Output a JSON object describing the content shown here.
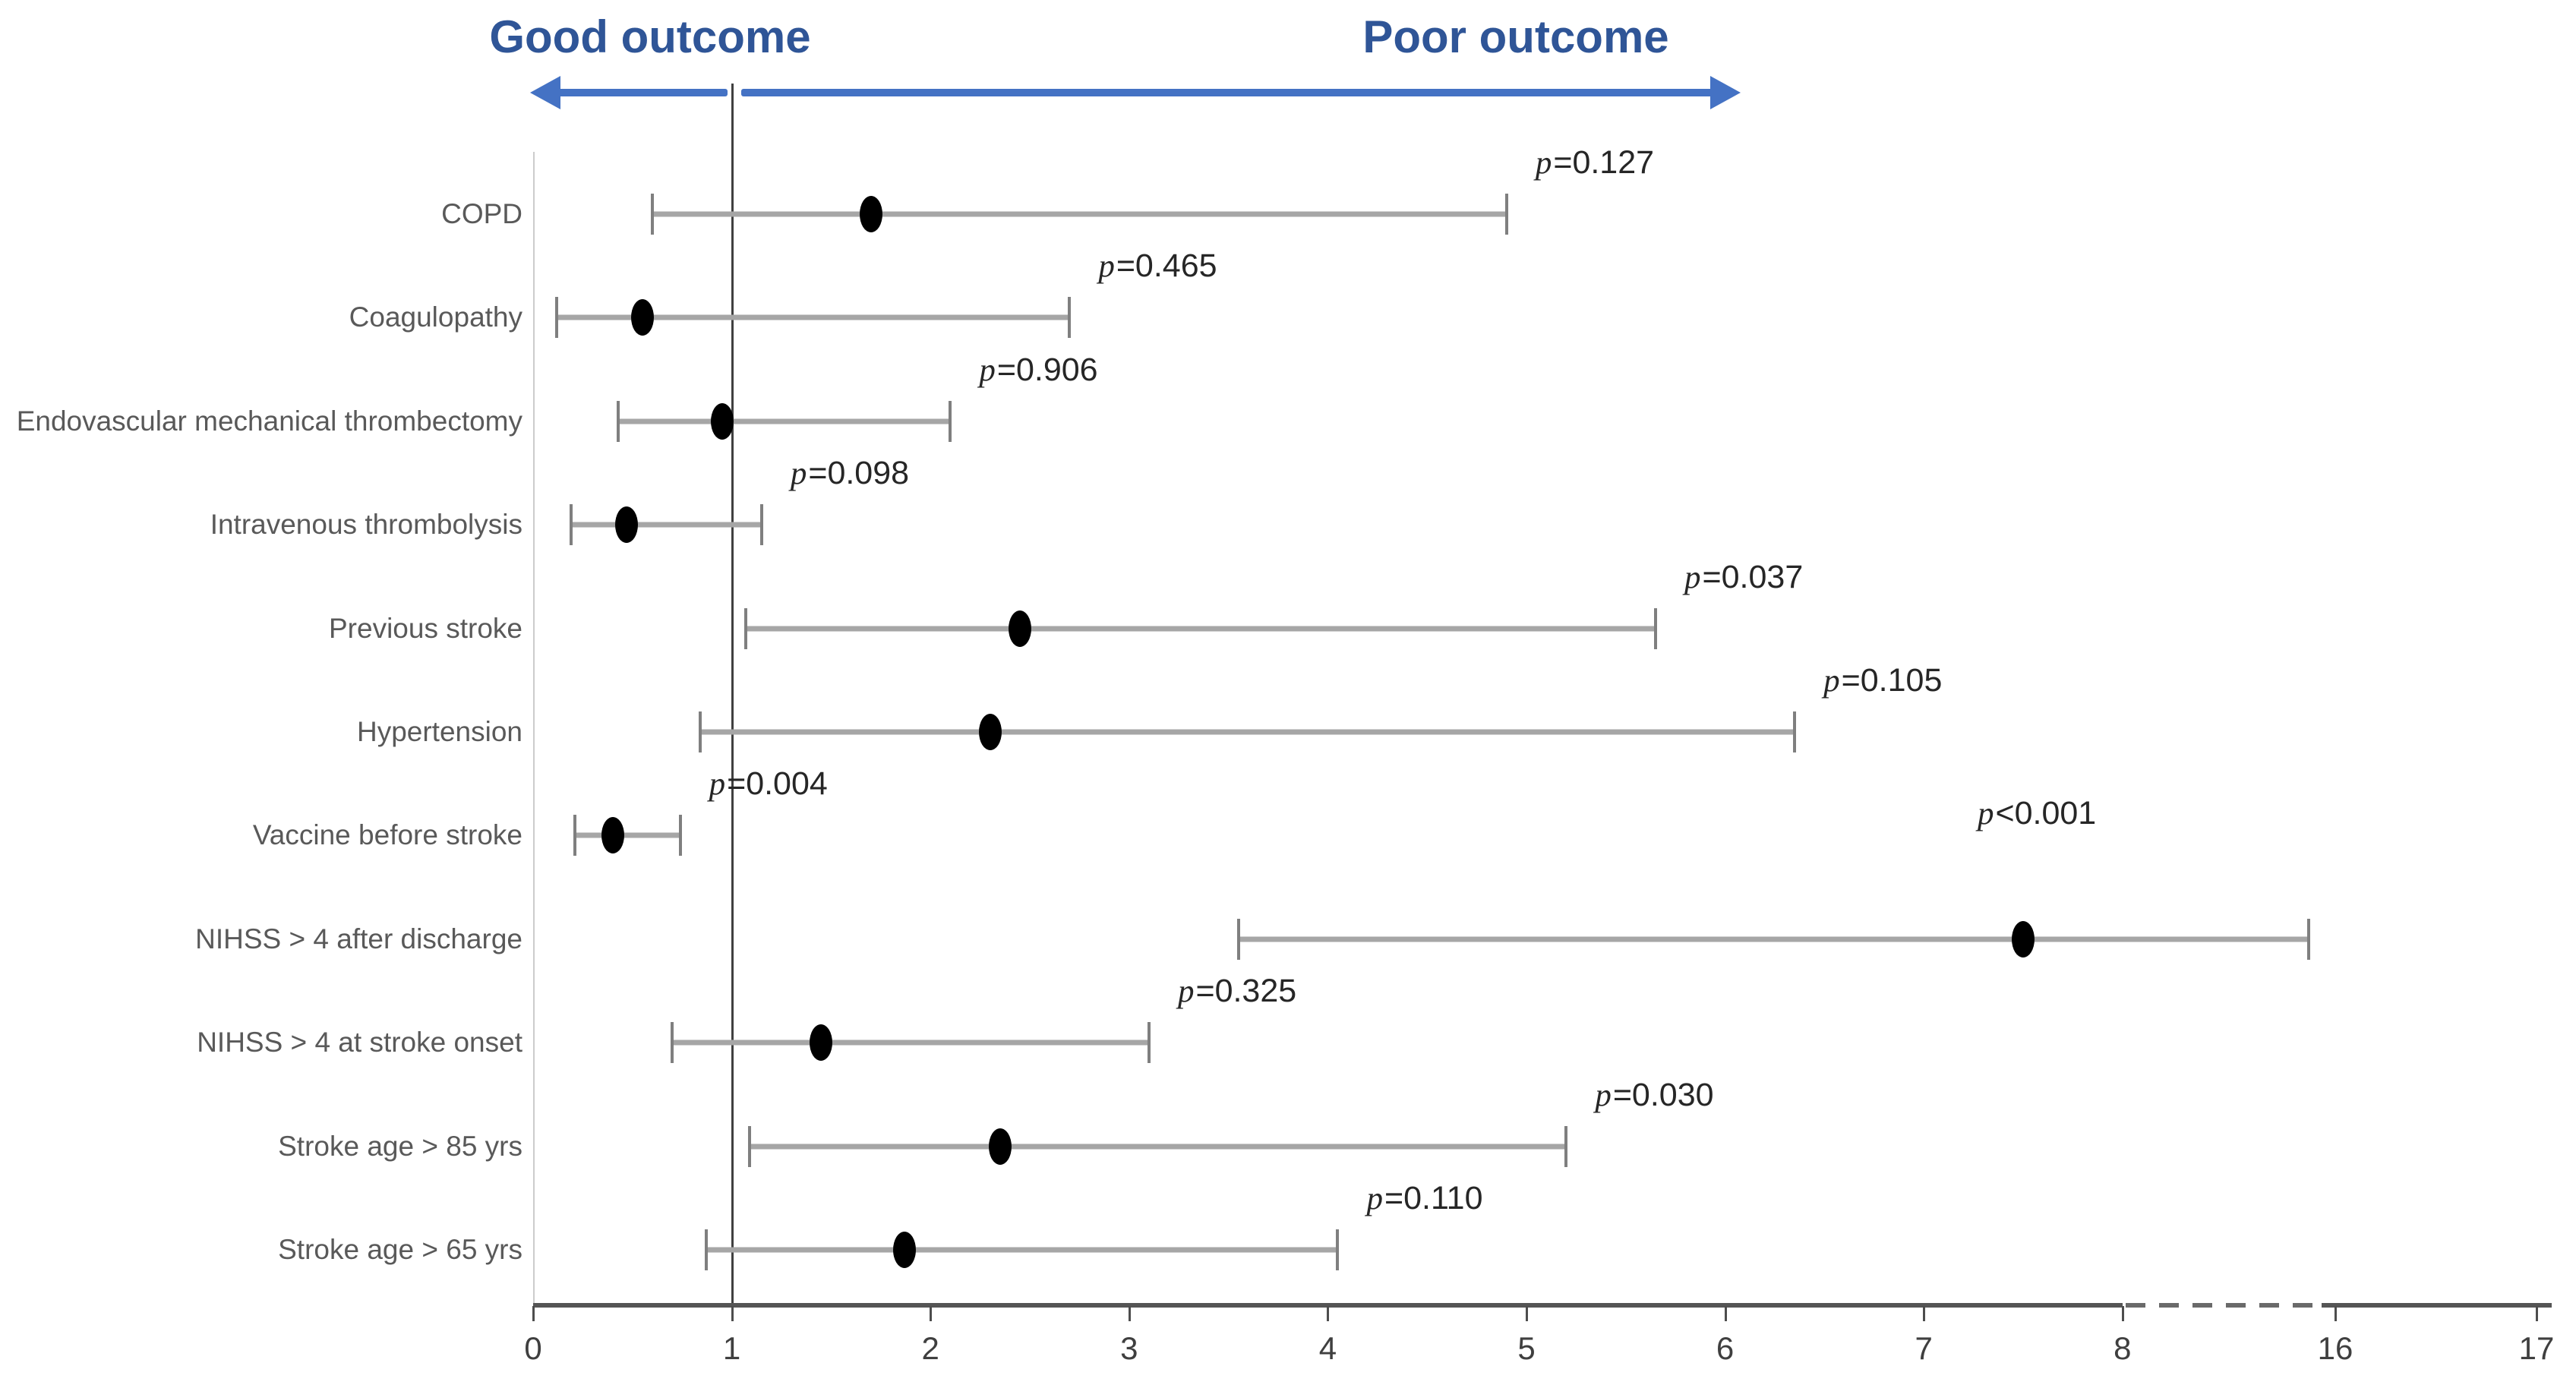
{
  "colors": {
    "title_blue": "#2F5597",
    "arrow_blue": "#4472C4",
    "axis_gray": "#555555",
    "ci_gray": "#A6A6A6",
    "marker_black": "#000000",
    "label_gray": "#595959"
  },
  "chart_data": {
    "type": "forest",
    "orientation": "horizontal",
    "header": {
      "left_label": "Good outcome",
      "right_label": "Poor outcome"
    },
    "x_axis": {
      "ticks": [
        0,
        1,
        2,
        3,
        4,
        5,
        6,
        7,
        8,
        16,
        17
      ],
      "range_solid": [
        0,
        8
      ],
      "break_after": 8,
      "break_before": 16,
      "reference_line": 1,
      "grid": false
    },
    "rows": [
      {
        "label": "COPD",
        "or": 1.7,
        "ci_low": 0.6,
        "ci_high": 4.9,
        "p": "p=0.127",
        "p_anchor": "ci_high"
      },
      {
        "label": "Coagulopathy",
        "or": 0.55,
        "ci_low": 0.12,
        "ci_high": 2.7,
        "p": "p=0.465",
        "p_anchor": "ci_high"
      },
      {
        "label": "Endovascular mechanical thrombectomy",
        "or": 0.95,
        "ci_low": 0.43,
        "ci_high": 2.1,
        "p": "p=0.906",
        "p_anchor": "ci_high"
      },
      {
        "label": "Intravenous thrombolysis",
        "or": 0.47,
        "ci_low": 0.19,
        "ci_high": 1.15,
        "p": "p=0.098",
        "p_anchor": "ci_high"
      },
      {
        "label": "Previous stroke",
        "or": 2.45,
        "ci_low": 1.07,
        "ci_high": 5.65,
        "p": "p=0.037",
        "p_anchor": "ci_high"
      },
      {
        "label": "Hypertension",
        "or": 2.3,
        "ci_low": 0.84,
        "ci_high": 6.35,
        "p": "p=0.105",
        "p_anchor": "ci_high"
      },
      {
        "label": "Vaccine before stroke",
        "or": 0.4,
        "ci_low": 0.21,
        "ci_high": 0.74,
        "p": "p=0.004",
        "p_anchor": "ci_high"
      },
      {
        "label": "NIHSS > 4 after discharge",
        "or": 7.5,
        "ci_low": 3.55,
        "ci_high": 15.0,
        "p": "p<0.001",
        "p_anchor": "point"
      },
      {
        "label": "NIHSS > 4 at stroke onset",
        "or": 1.45,
        "ci_low": 0.7,
        "ci_high": 3.1,
        "p": "p=0.325",
        "p_anchor": "ci_high"
      },
      {
        "label": "Stroke age > 85 yrs",
        "or": 2.35,
        "ci_low": 1.09,
        "ci_high": 5.2,
        "p": "p=0.030",
        "p_anchor": "ci_high"
      },
      {
        "label": "Stroke age > 65 yrs",
        "or": 1.87,
        "ci_low": 0.87,
        "ci_high": 4.05,
        "p": "p=0.110",
        "p_anchor": "ci_high"
      }
    ]
  }
}
